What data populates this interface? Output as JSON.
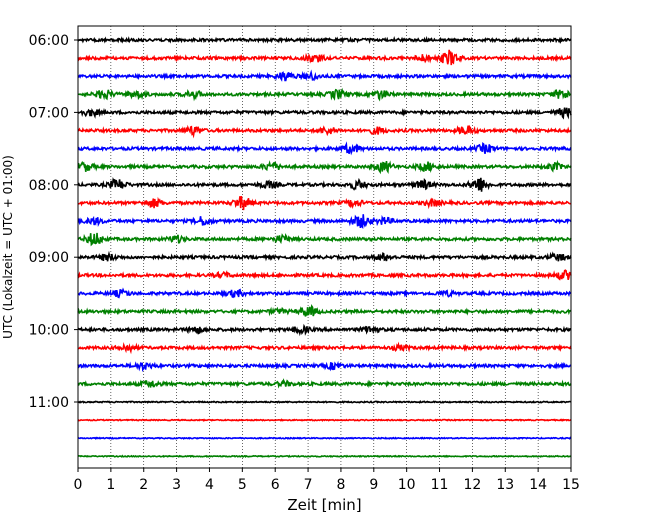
{
  "chart_data": {
    "type": "line",
    "title": "",
    "xlabel": "Zeit  [min]",
    "ylabel": "UTC (Lokalzeit = UTC + 01:00)",
    "xlim": [
      0,
      15
    ],
    "x_ticks": [
      "0",
      "1",
      "2",
      "3",
      "4",
      "5",
      "6",
      "7",
      "8",
      "9",
      "10",
      "11",
      "12",
      "13",
      "14",
      "15"
    ],
    "y_tick_labels": [
      "06:00",
      "07:00",
      "08:00",
      "09:00",
      "10:00",
      "11:00"
    ],
    "grid": "vertical dotted at each minute",
    "trace_colors": [
      "#000000",
      "#ff0000",
      "#0000ff",
      "#008000"
    ],
    "traces": [
      {
        "start": "06:00"
      },
      {
        "start": "06:15"
      },
      {
        "start": "06:30"
      },
      {
        "start": "06:45"
      },
      {
        "start": "07:00"
      },
      {
        "start": "07:15"
      },
      {
        "start": "07:30"
      },
      {
        "start": "07:45"
      },
      {
        "start": "08:00"
      },
      {
        "start": "08:15"
      },
      {
        "start": "08:30"
      },
      {
        "start": "08:45"
      },
      {
        "start": "09:00"
      },
      {
        "start": "09:15"
      },
      {
        "start": "09:30"
      },
      {
        "start": "09:45"
      },
      {
        "start": "10:00"
      },
      {
        "start": "10:15"
      },
      {
        "start": "10:30"
      },
      {
        "start": "10:45"
      },
      {
        "start": "11:00"
      },
      {
        "start": "11:15"
      },
      {
        "start": "11:30"
      },
      {
        "start": "11:45"
      }
    ]
  }
}
